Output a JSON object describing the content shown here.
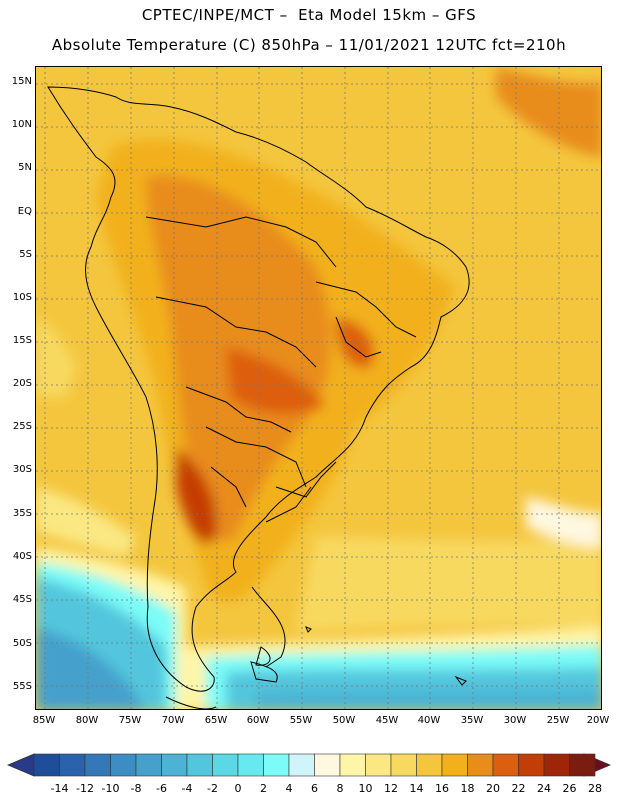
{
  "header": {
    "line1": "CPTEC/INPE/MCT –  Eta Model 15km – GFS",
    "line2": "Absolute Temperature (C) 850hPa – 11/01/2021 12UTC fct=210h"
  },
  "map": {
    "lat_labels": [
      "15N",
      "10N",
      "5N",
      "EQ",
      "5S",
      "10S",
      "15S",
      "20S",
      "25S",
      "30S",
      "35S",
      "40S",
      "45S",
      "50S",
      "55S"
    ],
    "lon_labels": [
      "85W",
      "80W",
      "75W",
      "70W",
      "65W",
      "60W",
      "55W",
      "50W",
      "45W",
      "40W",
      "35W",
      "30W",
      "25W",
      "20W"
    ]
  },
  "colorbar": {
    "labels": [
      "-14",
      "-12",
      "-10",
      "-8",
      "-6",
      "-4",
      "-2",
      "0",
      "2",
      "4",
      "6",
      "8",
      "10",
      "12",
      "14",
      "16",
      "18",
      "20",
      "22",
      "24",
      "26",
      "28"
    ],
    "colors": [
      "#1f4e99",
      "#2a62ab",
      "#3478b8",
      "#3d8cc3",
      "#45a0cc",
      "#4cb3d4",
      "#52c6dd",
      "#5ad8e6",
      "#66eaf0",
      "#7bfcf8",
      "#cff5fb",
      "#fff8e0",
      "#fff5a8",
      "#fbe883",
      "#f8d960",
      "#f4c63e",
      "#f2b11b",
      "#e88c1a",
      "#dd5e0e",
      "#c43c06",
      "#a02408",
      "#7a1c10"
    ],
    "under_color": "#2a3a8a",
    "over_color": "#6b0c22"
  }
}
